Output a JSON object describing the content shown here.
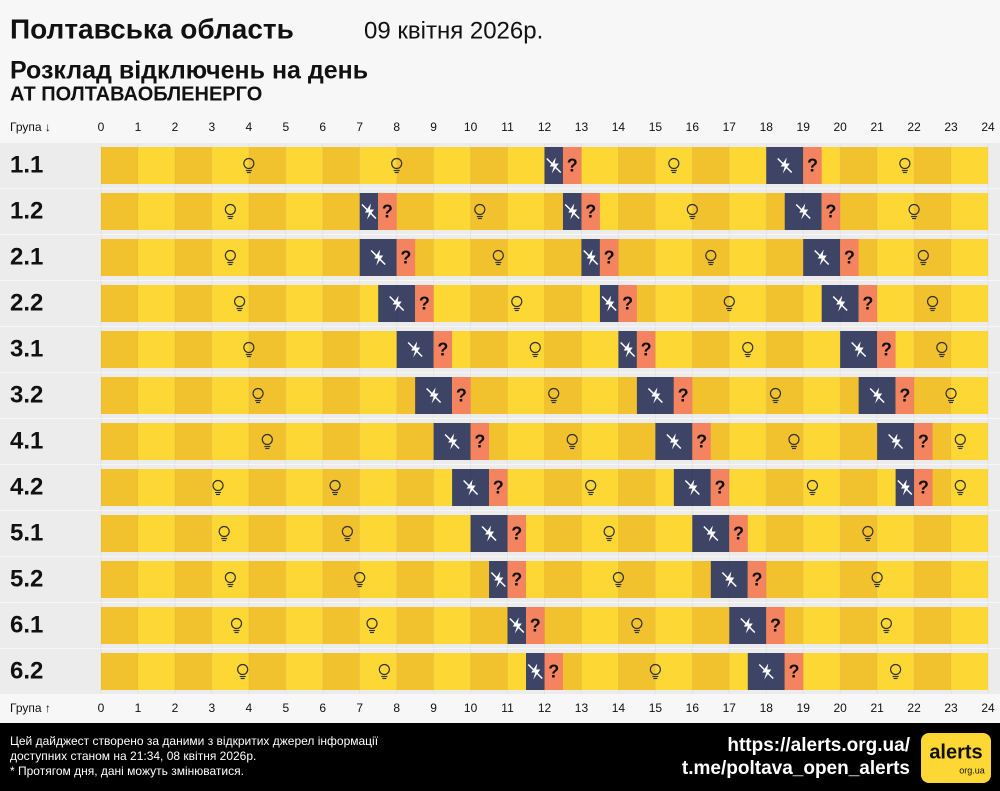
{
  "header": {
    "title": "Полтавська область",
    "date": "09 квітня 2026р.",
    "subtitle": "Розклад відключень на день",
    "company": "АТ ПОЛТАВАОБЛЕНЕРГО"
  },
  "chart_data": {
    "type": "schedule",
    "group_label_top": "Група ↓",
    "group_label_bottom": "Група ↑",
    "possible_label": "?",
    "xlim": [
      0,
      24
    ],
    "xticks": [
      0,
      1,
      2,
      3,
      4,
      5,
      6,
      7,
      8,
      9,
      10,
      11,
      12,
      13,
      14,
      15,
      16,
      17,
      18,
      19,
      20,
      21,
      22,
      23,
      24
    ],
    "colors": {
      "power": "#fdd835",
      "power_alt": "#f2c12e",
      "outage": "#3d4466",
      "possible": "#f4845f"
    },
    "groups": [
      {
        "name": "1.1",
        "outages": [
          [
            12,
            12.5
          ],
          [
            18,
            19
          ]
        ],
        "possible": [
          [
            12.5,
            13
          ],
          [
            19,
            19.5
          ]
        ]
      },
      {
        "name": "1.2",
        "outages": [
          [
            7,
            7.5
          ],
          [
            12.5,
            13
          ],
          [
            18.5,
            19.5
          ]
        ],
        "possible": [
          [
            7.5,
            8
          ],
          [
            13,
            13.5
          ],
          [
            19.5,
            20
          ]
        ]
      },
      {
        "name": "2.1",
        "outages": [
          [
            7,
            8
          ],
          [
            13,
            13.5
          ],
          [
            19,
            20
          ]
        ],
        "possible": [
          [
            8,
            8.5
          ],
          [
            13.5,
            14
          ],
          [
            20,
            20.5
          ]
        ]
      },
      {
        "name": "2.2",
        "outages": [
          [
            7.5,
            8.5
          ],
          [
            13.5,
            14
          ],
          [
            19.5,
            20.5
          ]
        ],
        "possible": [
          [
            8.5,
            9
          ],
          [
            14,
            14.5
          ],
          [
            20.5,
            21
          ]
        ]
      },
      {
        "name": "3.1",
        "outages": [
          [
            8,
            9
          ],
          [
            14,
            14.5
          ],
          [
            20,
            21
          ]
        ],
        "possible": [
          [
            9,
            9.5
          ],
          [
            14.5,
            15
          ],
          [
            21,
            21.5
          ]
        ]
      },
      {
        "name": "3.2",
        "outages": [
          [
            8.5,
            9.5
          ],
          [
            14.5,
            15.5
          ],
          [
            20.5,
            21.5
          ]
        ],
        "possible": [
          [
            9.5,
            10
          ],
          [
            15.5,
            16
          ],
          [
            21.5,
            22
          ]
        ]
      },
      {
        "name": "4.1",
        "outages": [
          [
            9,
            10
          ],
          [
            15,
            16
          ],
          [
            21,
            22
          ]
        ],
        "possible": [
          [
            10,
            10.5
          ],
          [
            16,
            16.5
          ],
          [
            22,
            22.5
          ]
        ]
      },
      {
        "name": "4.2",
        "outages": [
          [
            9.5,
            10.5
          ],
          [
            15.5,
            16.5
          ],
          [
            21.5,
            22
          ]
        ],
        "possible": [
          [
            10.5,
            11
          ],
          [
            16.5,
            17
          ],
          [
            22,
            22.5
          ]
        ]
      },
      {
        "name": "5.1",
        "outages": [
          [
            10,
            11
          ],
          [
            16,
            17
          ]
        ],
        "possible": [
          [
            11,
            11.5
          ],
          [
            17,
            17.5
          ]
        ]
      },
      {
        "name": "5.2",
        "outages": [
          [
            10.5,
            11
          ],
          [
            16.5,
            17.5
          ]
        ],
        "possible": [
          [
            11,
            11.5
          ],
          [
            17.5,
            18
          ]
        ]
      },
      {
        "name": "6.1",
        "outages": [
          [
            11,
            11.5
          ],
          [
            17,
            18
          ]
        ],
        "possible": [
          [
            11.5,
            12
          ],
          [
            18,
            18.5
          ]
        ]
      },
      {
        "name": "6.2",
        "outages": [
          [
            11.5,
            12
          ],
          [
            17.5,
            18.5
          ]
        ],
        "possible": [
          [
            12,
            12.5
          ],
          [
            18.5,
            19
          ]
        ]
      }
    ]
  },
  "footer": {
    "lines": [
      "Цей дайджест створено за даними з відкритих джерел інформації",
      "доступних станом на 21:34, 08 квітня 2026р.",
      "* Протягом дня, дані можуть змінюватися."
    ],
    "links": [
      "https://alerts.org.ua/",
      "t.me/poltava_open_alerts"
    ],
    "logo": "alerts",
    "logo_sub": "org.ua"
  }
}
